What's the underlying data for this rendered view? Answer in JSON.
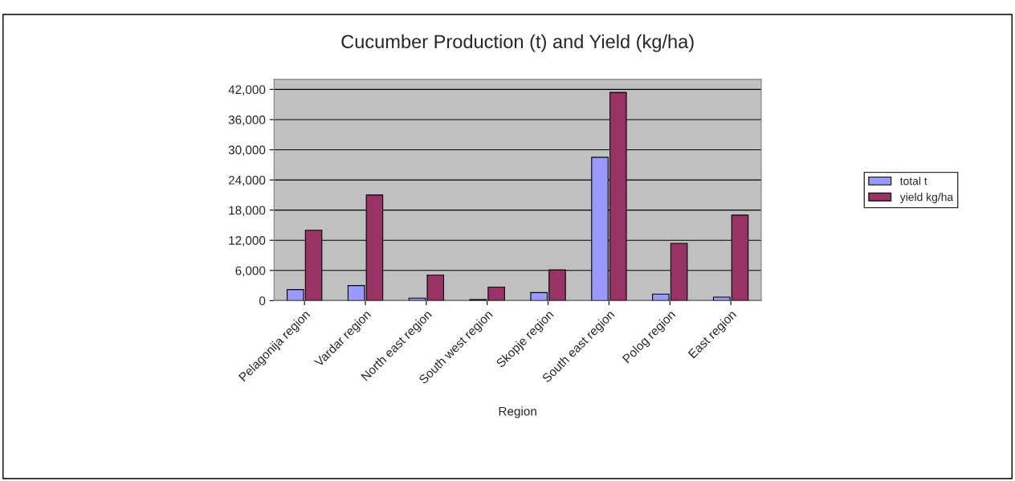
{
  "chart_data": {
    "type": "bar",
    "title": "Cucumber Production (t) and Yield (kg/ha)",
    "xlabel": "Region",
    "categories": [
      "Pelagonija region",
      "Vardar region",
      "North east region",
      "South west region",
      "Skopje region",
      "South east region",
      "Polog region",
      "East region"
    ],
    "series": [
      {
        "name": "total t",
        "color": "#9999ff",
        "values": [
          2200,
          3000,
          500,
          200,
          1600,
          28500,
          1300,
          700
        ]
      },
      {
        "name": "yield kg/ha",
        "color": "#993366",
        "values": [
          14000,
          21000,
          5100,
          2700,
          6100,
          41400,
          11400,
          17000
        ]
      }
    ],
    "ylim": [
      0,
      44000
    ],
    "yticks": [
      0,
      {
        "value": 6000,
        "label": "6,000"
      },
      {
        "value": 12000,
        "label": "12,000"
      },
      {
        "value": 18000,
        "label": "18,000"
      },
      {
        "value": 24000,
        "label": "24,000"
      },
      {
        "value": 30000,
        "label": "30,000"
      },
      {
        "value": 36000,
        "label": "36,000"
      },
      {
        "value": 42000,
        "label": "42,000"
      }
    ],
    "grid": "y",
    "legend": "right"
  }
}
